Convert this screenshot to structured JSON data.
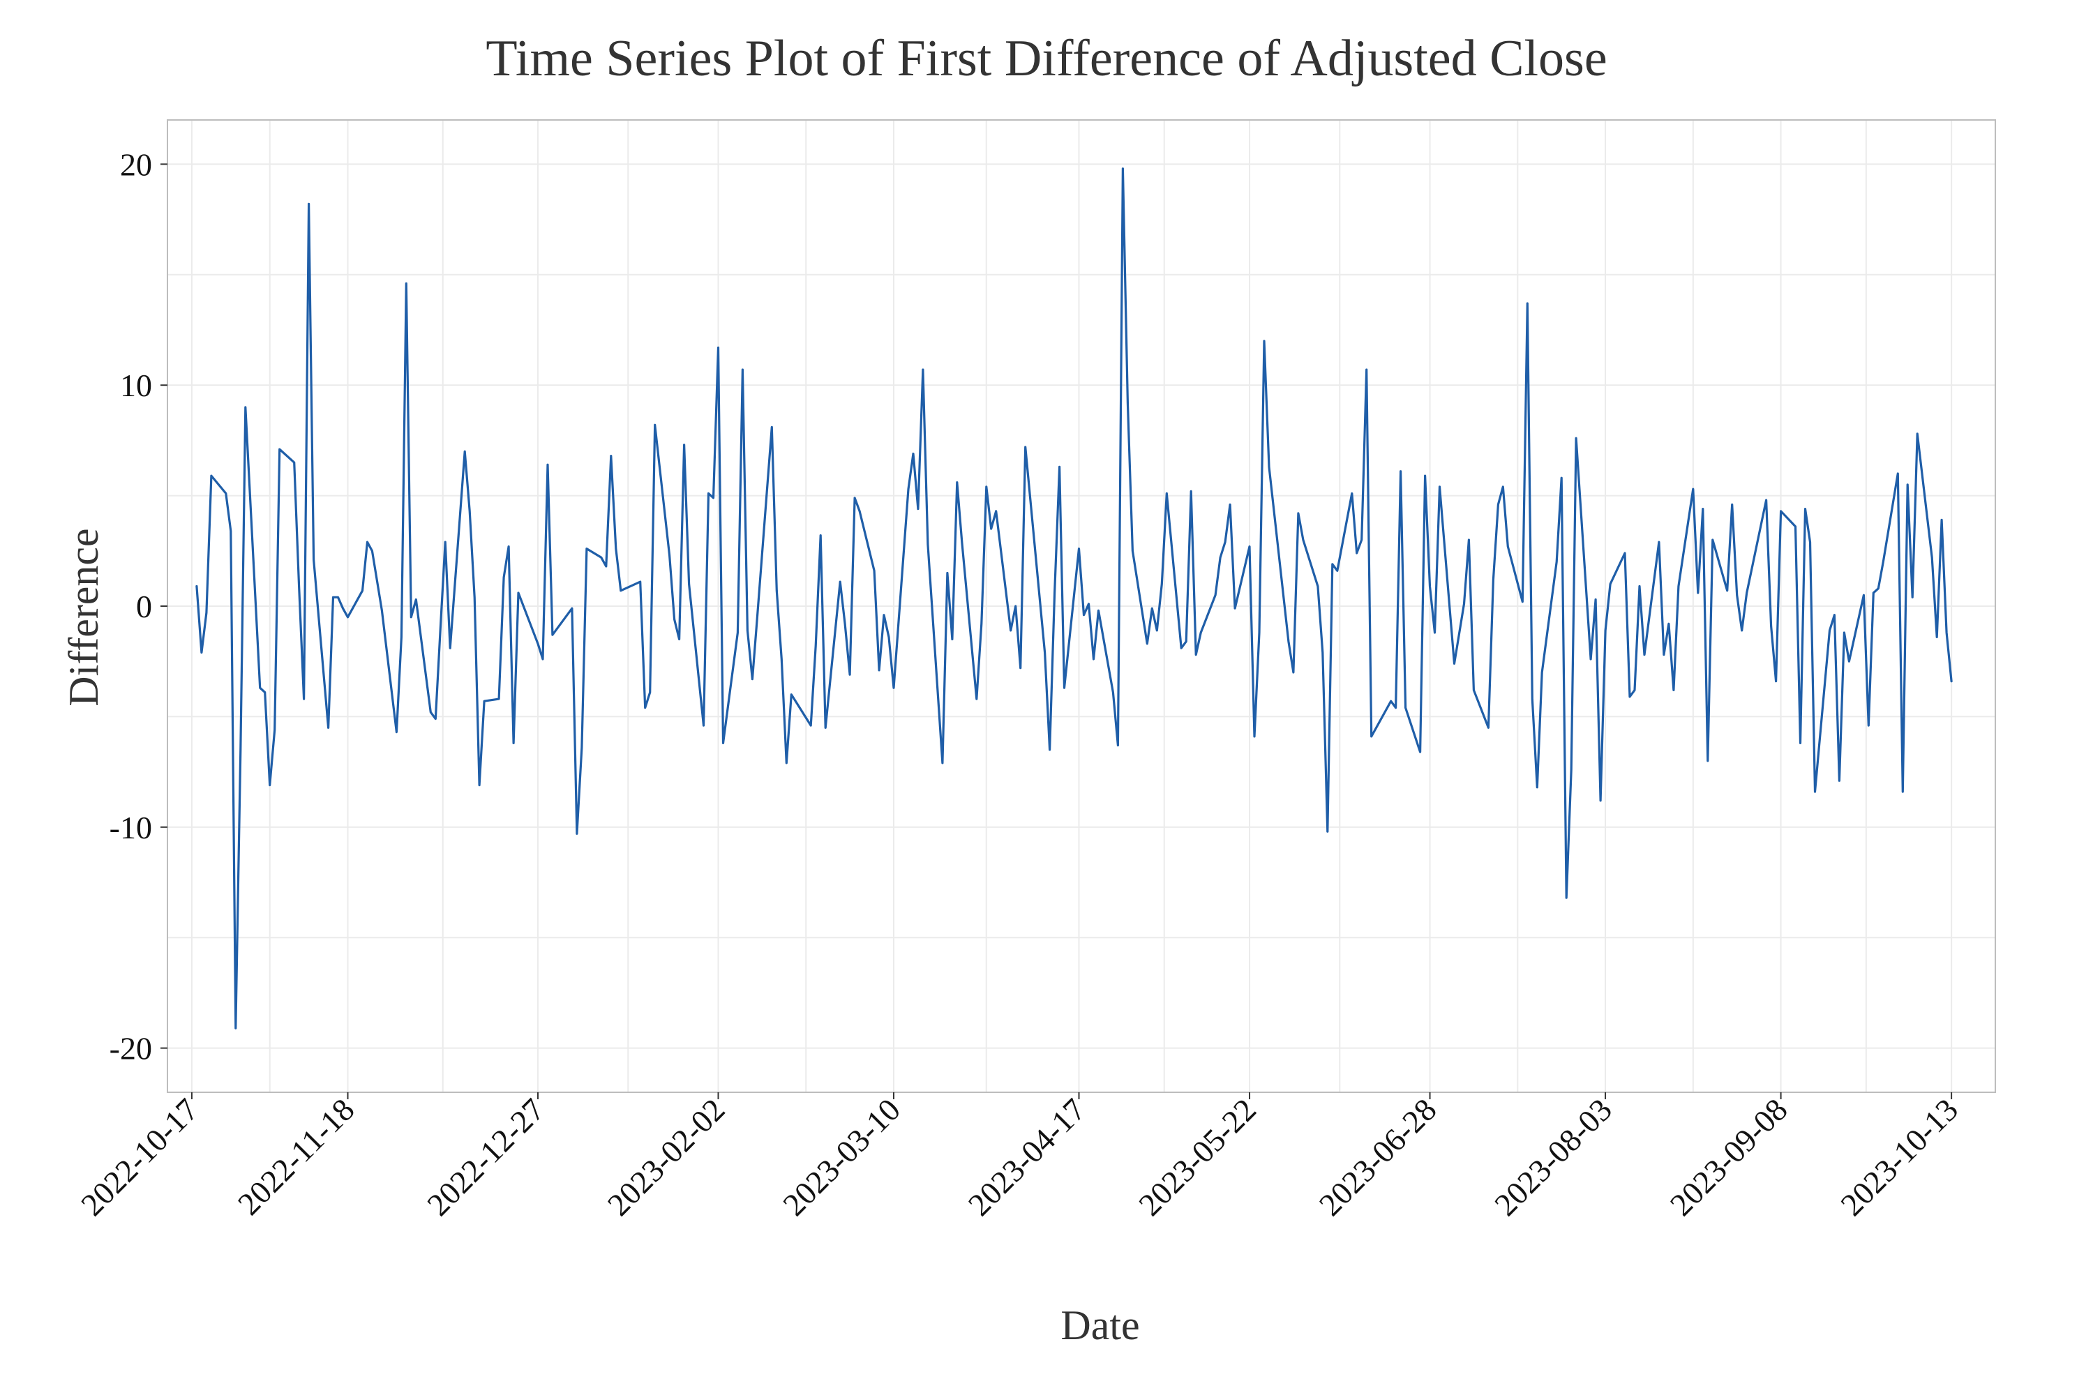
{
  "chart_data": {
    "type": "line",
    "title": "Time Series Plot of First Difference of Adjusted Close",
    "xlabel": "Date",
    "ylabel": "Difference",
    "grid": true,
    "legend": "none",
    "line_color": "#1f5ea8",
    "x_range": [
      "2022-10-12",
      "2023-10-22"
    ],
    "ylim": [
      -22.0,
      22.0
    ],
    "y_ticks": [
      -20,
      -10,
      0,
      10,
      20
    ],
    "y_tick_labels": [
      "-20",
      "-10",
      "0",
      "10",
      "20"
    ],
    "x_ticks": [
      "2022-10-17",
      "2022-11-18",
      "2022-12-27",
      "2023-02-02",
      "2023-03-10",
      "2023-04-17",
      "2023-05-22",
      "2023-06-28",
      "2023-08-03",
      "2023-09-08",
      "2023-10-13"
    ],
    "x_tick_labels": [
      "2022-10-17",
      "2022-11-18",
      "2022-12-27",
      "2023-02-02",
      "2023-03-10",
      "2023-04-17",
      "2023-05-22",
      "2023-06-28",
      "2023-08-03",
      "2023-09-08",
      "2023-10-13"
    ],
    "series": [
      {
        "x": [
          "2022-10-18",
          "2022-10-19",
          "2022-10-20",
          "2022-10-21",
          "2022-10-24",
          "2022-10-25",
          "2022-10-26",
          "2022-10-27",
          "2022-10-28",
          "2022-10-31",
          "2022-11-01",
          "2022-11-02",
          "2022-11-03",
          "2022-11-04",
          "2022-11-07",
          "2022-11-08",
          "2022-11-09",
          "2022-11-10",
          "2022-11-11",
          "2022-11-14",
          "2022-11-15",
          "2022-11-16",
          "2022-11-17",
          "2022-11-18",
          "2022-11-21",
          "2022-11-22",
          "2022-11-23",
          "2022-11-25",
          "2022-11-28",
          "2022-11-29",
          "2022-11-30",
          "2022-12-01",
          "2022-12-02",
          "2022-12-05",
          "2022-12-06",
          "2022-12-07",
          "2022-12-08",
          "2022-12-09",
          "2022-12-12",
          "2022-12-13",
          "2022-12-14",
          "2022-12-15",
          "2022-12-16",
          "2022-12-19",
          "2022-12-20",
          "2022-12-21",
          "2022-12-22",
          "2022-12-23",
          "2022-12-27",
          "2022-12-28",
          "2022-12-29",
          "2022-12-30",
          "2023-01-03",
          "2023-01-04",
          "2023-01-05",
          "2023-01-06",
          "2023-01-09",
          "2023-01-10",
          "2023-01-11",
          "2023-01-12",
          "2023-01-13",
          "2023-01-17",
          "2023-01-18",
          "2023-01-19",
          "2023-01-20",
          "2023-01-23",
          "2023-01-24",
          "2023-01-25",
          "2023-01-26",
          "2023-01-27",
          "2023-01-30",
          "2023-01-31",
          "2023-02-01",
          "2023-02-02",
          "2023-02-03",
          "2023-02-06",
          "2023-02-07",
          "2023-02-08",
          "2023-02-09",
          "2023-02-10",
          "2023-02-13",
          "2023-02-14",
          "2023-02-15",
          "2023-02-16",
          "2023-02-17",
          "2023-02-21",
          "2023-02-22",
          "2023-02-23",
          "2023-02-24",
          "2023-02-27",
          "2023-02-28",
          "2023-03-01",
          "2023-03-02",
          "2023-03-03",
          "2023-03-06",
          "2023-03-07",
          "2023-03-08",
          "2023-03-09",
          "2023-03-10",
          "2023-03-13",
          "2023-03-14",
          "2023-03-15",
          "2023-03-16",
          "2023-03-17",
          "2023-03-20",
          "2023-03-21",
          "2023-03-22",
          "2023-03-23",
          "2023-03-24",
          "2023-03-27",
          "2023-03-28",
          "2023-03-29",
          "2023-03-30",
          "2023-03-31",
          "2023-04-03",
          "2023-04-04",
          "2023-04-05",
          "2023-04-06",
          "2023-04-10",
          "2023-04-11",
          "2023-04-12",
          "2023-04-13",
          "2023-04-14",
          "2023-04-17",
          "2023-04-18",
          "2023-04-19",
          "2023-04-20",
          "2023-04-21",
          "2023-04-24",
          "2023-04-25",
          "2023-04-26",
          "2023-04-27",
          "2023-04-28",
          "2023-05-01",
          "2023-05-02",
          "2023-05-03",
          "2023-05-04",
          "2023-05-05",
          "2023-05-08",
          "2023-05-09",
          "2023-05-10",
          "2023-05-11",
          "2023-05-12",
          "2023-05-15",
          "2023-05-16",
          "2023-05-17",
          "2023-05-18",
          "2023-05-19",
          "2023-05-22",
          "2023-05-23",
          "2023-05-24",
          "2023-05-25",
          "2023-05-26",
          "2023-05-30",
          "2023-05-31",
          "2023-06-01",
          "2023-06-02",
          "2023-06-05",
          "2023-06-06",
          "2023-06-07",
          "2023-06-08",
          "2023-06-09",
          "2023-06-12",
          "2023-06-13",
          "2023-06-14",
          "2023-06-15",
          "2023-06-16",
          "2023-06-20",
          "2023-06-21",
          "2023-06-22",
          "2023-06-23",
          "2023-06-26",
          "2023-06-27",
          "2023-06-28",
          "2023-06-29",
          "2023-06-30",
          "2023-07-03",
          "2023-07-05",
          "2023-07-06",
          "2023-07-07",
          "2023-07-10",
          "2023-07-11",
          "2023-07-12",
          "2023-07-13",
          "2023-07-14",
          "2023-07-17",
          "2023-07-18",
          "2023-07-19",
          "2023-07-20",
          "2023-07-21",
          "2023-07-24",
          "2023-07-25",
          "2023-07-26",
          "2023-07-27",
          "2023-07-28",
          "2023-07-31",
          "2023-08-01",
          "2023-08-02",
          "2023-08-03",
          "2023-08-04",
          "2023-08-07",
          "2023-08-08",
          "2023-08-09",
          "2023-08-10",
          "2023-08-11",
          "2023-08-14",
          "2023-08-15",
          "2023-08-16",
          "2023-08-17",
          "2023-08-18",
          "2023-08-21",
          "2023-08-22",
          "2023-08-23",
          "2023-08-24",
          "2023-08-25",
          "2023-08-28",
          "2023-08-29",
          "2023-08-30",
          "2023-08-31",
          "2023-09-01",
          "2023-09-05",
          "2023-09-06",
          "2023-09-07",
          "2023-09-08",
          "2023-09-11",
          "2023-09-12",
          "2023-09-13",
          "2023-09-14",
          "2023-09-15",
          "2023-09-18",
          "2023-09-19",
          "2023-09-20",
          "2023-09-21",
          "2023-09-22",
          "2023-09-25",
          "2023-09-26",
          "2023-09-27",
          "2023-09-28",
          "2023-09-29",
          "2023-10-02",
          "2023-10-03",
          "2023-10-04",
          "2023-10-05",
          "2023-10-06",
          "2023-10-09",
          "2023-10-10",
          "2023-10-11",
          "2023-10-12",
          "2023-10-13"
        ],
        "values": [
          0.9,
          -2.1,
          -0.3,
          5.9,
          5.1,
          3.4,
          -19.1,
          -6.5,
          9.0,
          -3.7,
          -3.9,
          -8.1,
          -5.6,
          7.1,
          6.5,
          0.9,
          -4.2,
          18.2,
          2.1,
          -5.5,
          0.4,
          0.4,
          -0.1,
          -0.5,
          0.7,
          2.9,
          2.5,
          -0.2,
          -5.7,
          -1.4,
          14.6,
          -0.5,
          0.3,
          -4.8,
          -5.1,
          -1.0,
          2.9,
          -1.9,
          7.0,
          4.3,
          0.4,
          -8.1,
          -4.3,
          -4.2,
          1.3,
          2.7,
          -6.2,
          0.6,
          -1.7,
          -2.4,
          6.4,
          -1.3,
          -0.1,
          -10.3,
          -6.4,
          2.6,
          2.2,
          1.8,
          6.8,
          2.6,
          0.7,
          1.1,
          -4.6,
          -3.9,
          8.2,
          2.3,
          -0.6,
          -1.5,
          7.3,
          1.0,
          -5.4,
          5.1,
          4.9,
          11.7,
          -6.2,
          -1.2,
          10.7,
          -1.1,
          -3.3,
          -0.5,
          8.1,
          0.7,
          -2.4,
          -7.1,
          -4.0,
          -5.4,
          -1.8,
          3.2,
          -5.5,
          1.1,
          -0.8,
          -3.1,
          4.9,
          4.3,
          1.6,
          -2.9,
          -0.4,
          -1.4,
          -3.7,
          5.3,
          6.9,
          4.4,
          10.7,
          2.8,
          -7.1,
          1.5,
          -1.5,
          5.6,
          2.9,
          -4.2,
          -0.8,
          5.4,
          3.5,
          4.3,
          -1.1,
          0.0,
          -2.8,
          7.2,
          -2.1,
          -6.5,
          0.6,
          6.3,
          -3.7,
          2.6,
          -0.4,
          0.1,
          -2.4,
          -0.2,
          -3.9,
          -6.3,
          19.8,
          9.2,
          2.5,
          -1.7,
          -0.1,
          -1.1,
          1.0,
          5.1,
          -1.9,
          -1.6,
          5.2,
          -2.2,
          -1.2,
          0.5,
          2.2,
          2.9,
          4.6,
          -0.1,
          2.7,
          -5.9,
          -1.2,
          12.0,
          6.3,
          -1.6,
          -3.0,
          4.2,
          3.0,
          0.9,
          -2.1,
          -10.2,
          1.9,
          1.6,
          5.1,
          2.4,
          3.0,
          10.7,
          -5.9,
          -4.3,
          -4.6,
          6.1,
          -4.6,
          -6.6,
          5.9,
          0.9,
          -1.2,
          5.4,
          -2.6,
          0.1,
          3.0,
          -3.8,
          -5.5,
          1.2,
          4.6,
          5.4,
          2.7,
          0.2,
          13.7,
          -4.2,
          -8.2,
          -3.0,
          2.0,
          5.8,
          -13.2,
          -7.4,
          7.6,
          -2.4,
          0.3,
          -8.8,
          -1.1,
          1.0,
          2.4,
          -4.1,
          -3.8,
          0.9,
          -2.2,
          2.9,
          -2.2,
          -0.8,
          -3.8,
          0.9,
          5.3,
          0.6,
          4.4,
          -7.0,
          3.0,
          0.7,
          4.6,
          0.5,
          -1.1,
          0.6,
          4.8,
          -0.9,
          -3.4,
          4.3,
          3.6,
          -6.2,
          4.4,
          2.9,
          -8.4,
          -1.1,
          -0.4,
          -7.9,
          -1.2,
          -2.5,
          0.5,
          -5.4,
          0.6,
          0.8,
          2.0,
          6.0,
          -8.4,
          5.5,
          0.4,
          7.8,
          2.2,
          -1.4,
          3.9,
          -1.2,
          -3.4
        ]
      }
    ]
  }
}
